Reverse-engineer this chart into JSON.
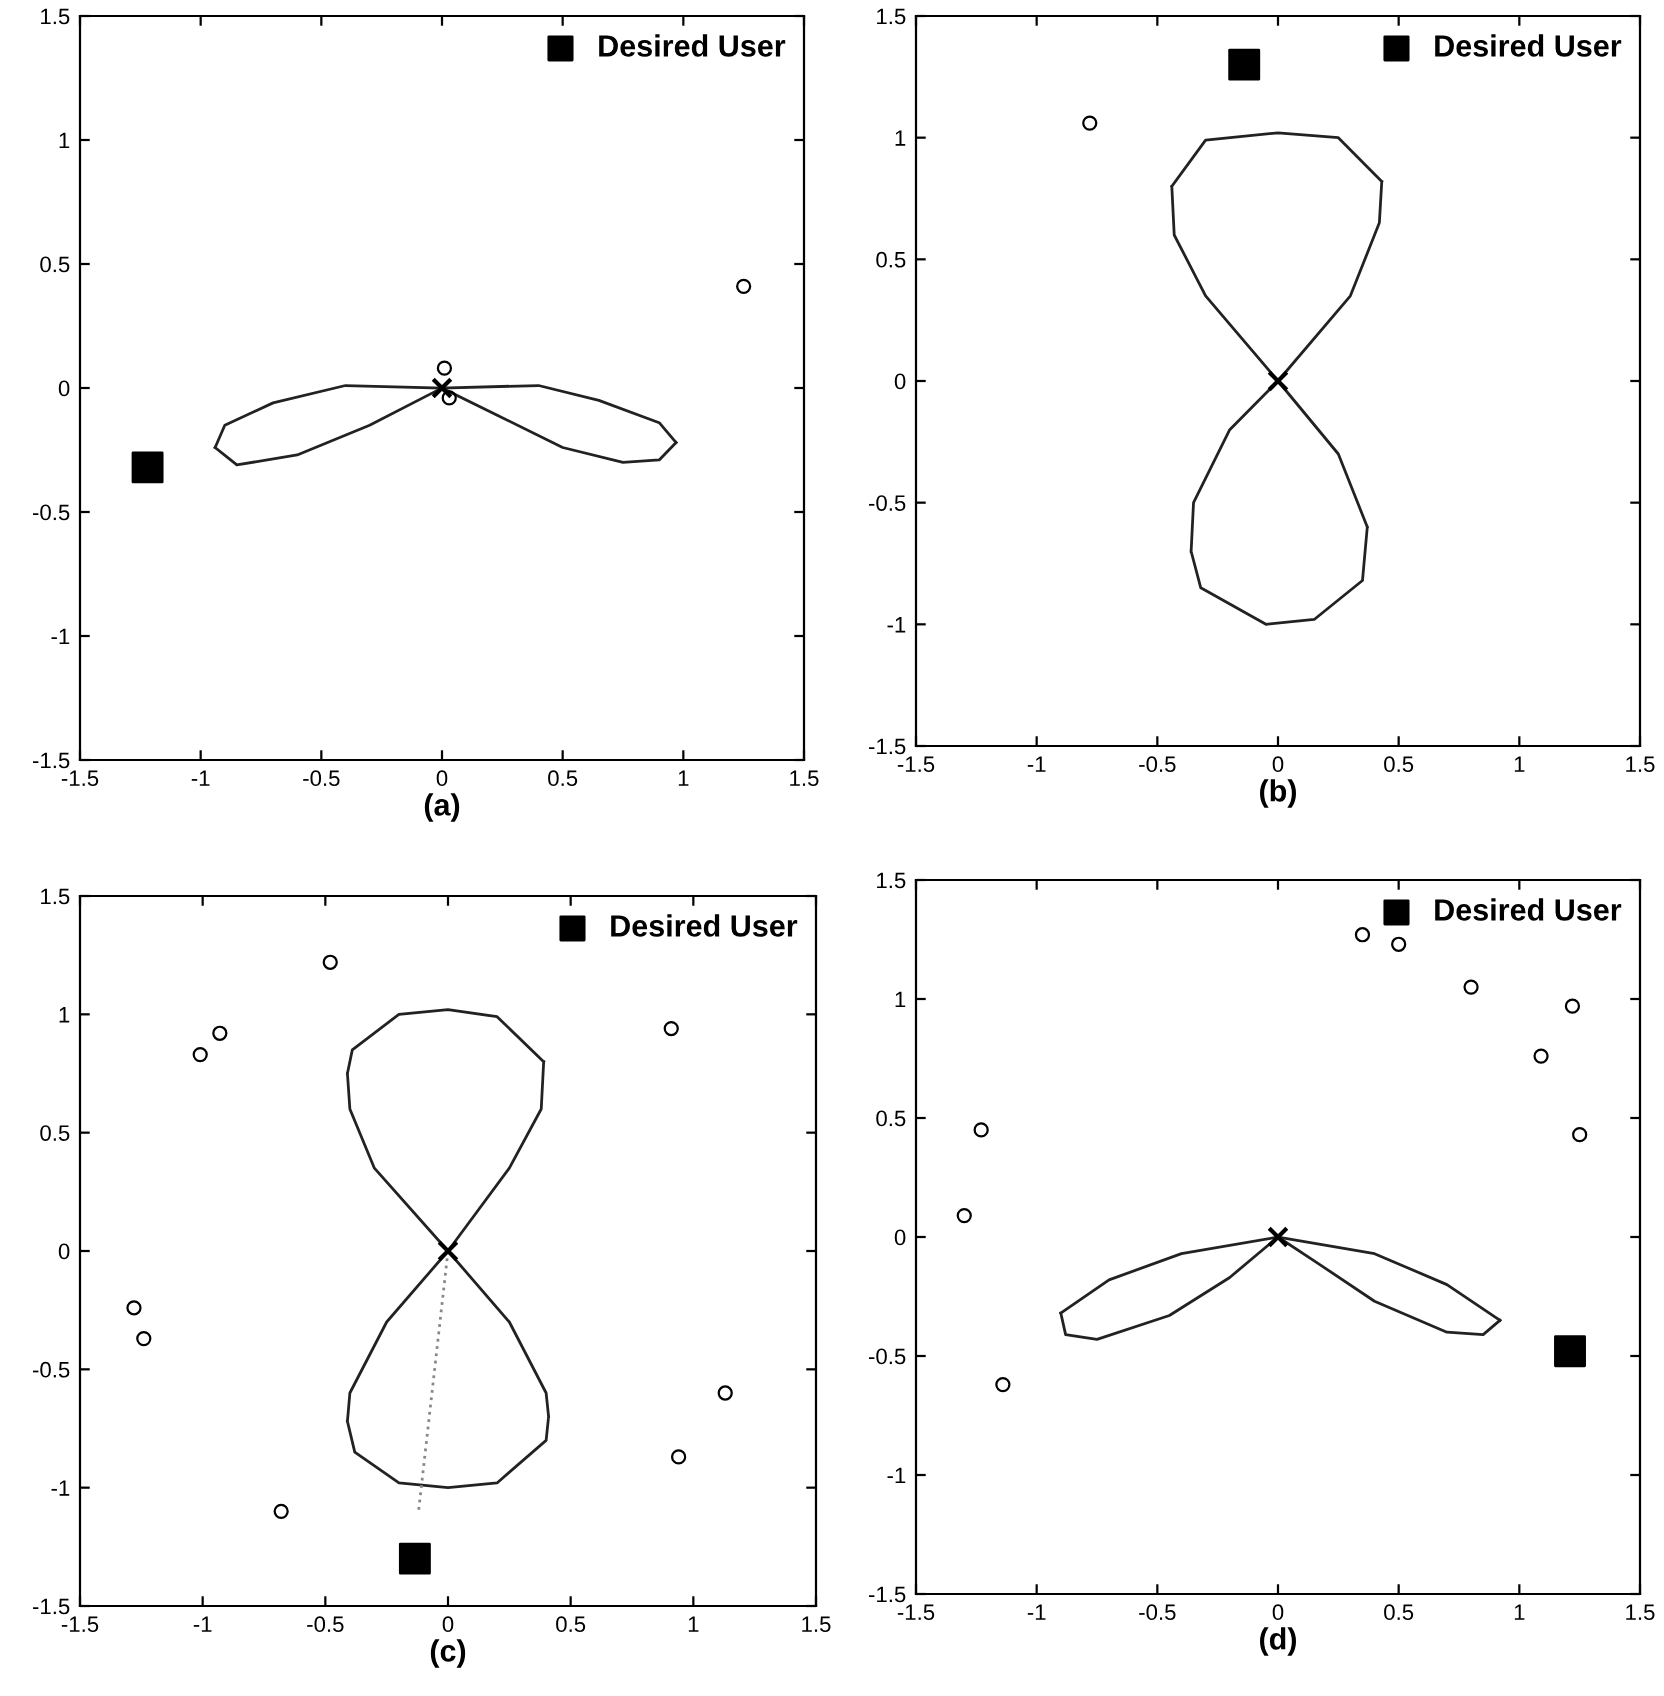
{
  "chart_data": [
    {
      "type": "scatter",
      "xlabel": "(a)",
      "xlim": [
        -1.5,
        1.5
      ],
      "ylim": [
        -1.5,
        1.5
      ],
      "xticks": [
        -1.5,
        -1,
        -0.5,
        0,
        0.5,
        1,
        1.5
      ],
      "yticks": [
        -1.5,
        -1,
        -0.5,
        0,
        0.5,
        1,
        1.5
      ],
      "grid": false,
      "legend": "top right",
      "series": [
        {
          "type": "line",
          "color": "#222222",
          "line_style": "solid",
          "x": [
            0,
            -0.4,
            -0.7,
            -0.9,
            -0.94
          ],
          "values": [
            0,
            0.01,
            -0.06,
            -0.15,
            -0.24
          ]
        },
        {
          "type": "line",
          "color": "#222222",
          "line_style": "solid",
          "x": [
            -0.94,
            -0.85,
            -0.6,
            -0.3,
            0
          ],
          "values": [
            -0.24,
            -0.31,
            -0.27,
            -0.15,
            0
          ]
        },
        {
          "type": "line",
          "color": "#222222",
          "line_style": "solid",
          "x": [
            0,
            0.25,
            0.5,
            0.75,
            0.9,
            0.97
          ],
          "values": [
            0,
            -0.12,
            -0.24,
            -0.3,
            -0.29,
            -0.22
          ]
        },
        {
          "type": "line",
          "color": "#222222",
          "line_style": "solid",
          "x": [
            0.97,
            0.9,
            0.65,
            0.4,
            0
          ],
          "values": [
            -0.22,
            -0.14,
            -0.05,
            0.01,
            0
          ]
        },
        {
          "color": "#000000",
          "marker": "circle",
          "x": [
            1.25,
            0.01,
            0.03
          ],
          "values": [
            0.41,
            0.08,
            -0.04
          ]
        },
        {
          "color": "#000000",
          "marker": "cross",
          "x": [
            0
          ],
          "values": [
            0
          ]
        },
        {
          "name": "Desired User",
          "color": "#000000",
          "marker": "square",
          "x": [
            -1.22
          ],
          "values": [
            -0.32
          ]
        }
      ]
    },
    {
      "type": "scatter",
      "xlabel": "(b)",
      "xlim": [
        -1.5,
        1.5
      ],
      "ylim": [
        -1.5,
        1.5
      ],
      "xticks": [
        -1.5,
        -1,
        -0.5,
        0,
        0.5,
        1,
        1.5
      ],
      "yticks": [
        -1.5,
        -1,
        -0.5,
        0,
        0.5,
        1,
        1.5
      ],
      "grid": false,
      "legend": "top right",
      "series": [
        {
          "type": "line",
          "color": "#222222",
          "line_style": "solid",
          "marker": "none",
          "x": [
            -0.44,
            -0.3,
            0,
            0.25,
            0.43,
            null,
            0.43,
            0.42,
            0.3,
            0,
            -0.3,
            -0.43,
            -0.44
          ],
          "values": [
            0.8,
            0.99,
            1.02,
            1.0,
            0.82,
            null,
            0.82,
            0.65,
            0.35,
            0,
            0.35,
            0.6,
            0.8
          ]
        },
        {
          "type": "line",
          "color": "#222222",
          "line_style": "solid",
          "marker": "none",
          "x": [
            -0.36,
            -0.32,
            -0.05,
            0.15,
            0.35,
            0.37,
            null,
            0.37,
            0.25,
            0,
            -0.2,
            -0.35,
            -0.36
          ],
          "values": [
            -0.7,
            -0.85,
            -1.0,
            -0.98,
            -0.82,
            -0.6,
            null,
            -0.6,
            -0.3,
            0,
            -0.2,
            -0.5,
            -0.7
          ]
        },
        {
          "color": "#000000",
          "marker": "circle",
          "x": [
            -0.78
          ],
          "values": [
            1.06
          ]
        },
        {
          "color": "#000000",
          "marker": "cross",
          "x": [
            0
          ],
          "values": [
            0
          ]
        },
        {
          "name": "Desired User",
          "color": "#000000",
          "marker": "square",
          "x": [
            -0.14
          ],
          "values": [
            1.3
          ]
        }
      ]
    },
    {
      "type": "scatter",
      "xlabel": "(c)",
      "xlim": [
        -1.5,
        1.5
      ],
      "ylim": [
        -1.5,
        1.5
      ],
      "xticks": [
        -1.5,
        -1,
        -0.5,
        0,
        0.5,
        1,
        1.5
      ],
      "yticks": [
        -1.5,
        -1,
        -0.5,
        0,
        0.5,
        1,
        1.5
      ],
      "grid": false,
      "legend": "top right",
      "series": [
        {
          "type": "line",
          "color": "#222222",
          "line_style": "solid",
          "marker": "none",
          "x": [
            -0.41,
            -0.39,
            -0.2,
            0,
            0.2,
            0.39,
            null,
            0.39,
            0.38,
            0.25,
            0,
            -0.3,
            -0.4,
            -0.41
          ],
          "values": [
            0.75,
            0.85,
            1.0,
            1.02,
            0.99,
            0.8,
            null,
            0.8,
            0.6,
            0.35,
            0,
            0.35,
            0.6,
            0.75
          ]
        },
        {
          "type": "line",
          "color": "#222222",
          "line_style": "solid",
          "marker": "none",
          "x": [
            -0.41,
            -0.38,
            -0.2,
            0,
            0.2,
            0.4,
            0.41,
            null,
            0.41,
            0.4,
            0.25,
            0,
            -0.25,
            -0.4,
            -0.41
          ],
          "values": [
            -0.72,
            -0.85,
            -0.98,
            -1.0,
            -0.98,
            -0.8,
            -0.7,
            null,
            -0.7,
            -0.6,
            -0.3,
            0,
            -0.3,
            -0.6,
            -0.72
          ]
        },
        {
          "type": "line",
          "color": "#888888",
          "line_style": "dotted",
          "marker": "none",
          "x": [
            0,
            -0.12
          ],
          "values": [
            0,
            -1.1
          ]
        },
        {
          "color": "#000000",
          "marker": "circle",
          "x": [
            -0.48,
            -0.93,
            -1.01,
            -1.28,
            -1.24,
            -0.68,
            0.91,
            1.13,
            0.94
          ],
          "values": [
            1.22,
            0.92,
            0.83,
            -0.24,
            -0.37,
            -1.1,
            0.94,
            -0.6,
            -0.87
          ]
        },
        {
          "color": "#000000",
          "marker": "cross",
          "x": [
            0
          ],
          "values": [
            0
          ]
        },
        {
          "name": "Desired User",
          "color": "#000000",
          "marker": "square",
          "x": [
            -0.135
          ],
          "values": [
            -1.3
          ]
        }
      ]
    },
    {
      "type": "scatter",
      "xlabel": "(d)",
      "xlim": [
        -1.5,
        1.5
      ],
      "ylim": [
        -1.5,
        1.5
      ],
      "xticks": [
        -1.5,
        -1,
        -0.5,
        0,
        0.5,
        1,
        1.5
      ],
      "yticks": [
        -1.5,
        -1,
        -0.5,
        0,
        0.5,
        1,
        1.5
      ],
      "grid": false,
      "legend": "top right",
      "series": [
        {
          "type": "line",
          "color": "#222222",
          "line_style": "solid",
          "x": [
            0,
            -0.4,
            -0.7,
            -0.9
          ],
          "values": [
            0,
            -0.07,
            -0.18,
            -0.32
          ]
        },
        {
          "type": "line",
          "color": "#222222",
          "line_style": "solid",
          "x": [
            -0.9,
            -0.88,
            -0.75,
            -0.45,
            -0.2,
            0
          ],
          "values": [
            -0.32,
            -0.41,
            -0.43,
            -0.33,
            -0.17,
            0
          ]
        },
        {
          "type": "line",
          "color": "#222222",
          "line_style": "solid",
          "x": [
            0,
            0.15,
            0.4,
            0.7,
            0.85,
            0.92
          ],
          "values": [
            0,
            -0.1,
            -0.27,
            -0.4,
            -0.41,
            -0.35
          ]
        },
        {
          "type": "line",
          "color": "#222222",
          "line_style": "solid",
          "x": [
            0.92,
            0.7,
            0.4,
            0
          ],
          "values": [
            -0.35,
            -0.2,
            -0.07,
            0
          ]
        },
        {
          "color": "#000000",
          "marker": "circle",
          "x": [
            0.5,
            0.35,
            0.8,
            1.09,
            1.25,
            -1.23,
            -1.3,
            -1.14,
            1.22
          ],
          "values": [
            1.23,
            1.27,
            1.05,
            0.76,
            0.43,
            0.45,
            0.09,
            -0.62,
            0.97
          ]
        },
        {
          "color": "#000000",
          "marker": "cross",
          "x": [
            0
          ],
          "values": [
            0
          ]
        },
        {
          "name": "Desired User",
          "color": "#000000",
          "marker": "square",
          "x": [
            1.21
          ],
          "values": [
            -0.48
          ]
        }
      ]
    }
  ]
}
